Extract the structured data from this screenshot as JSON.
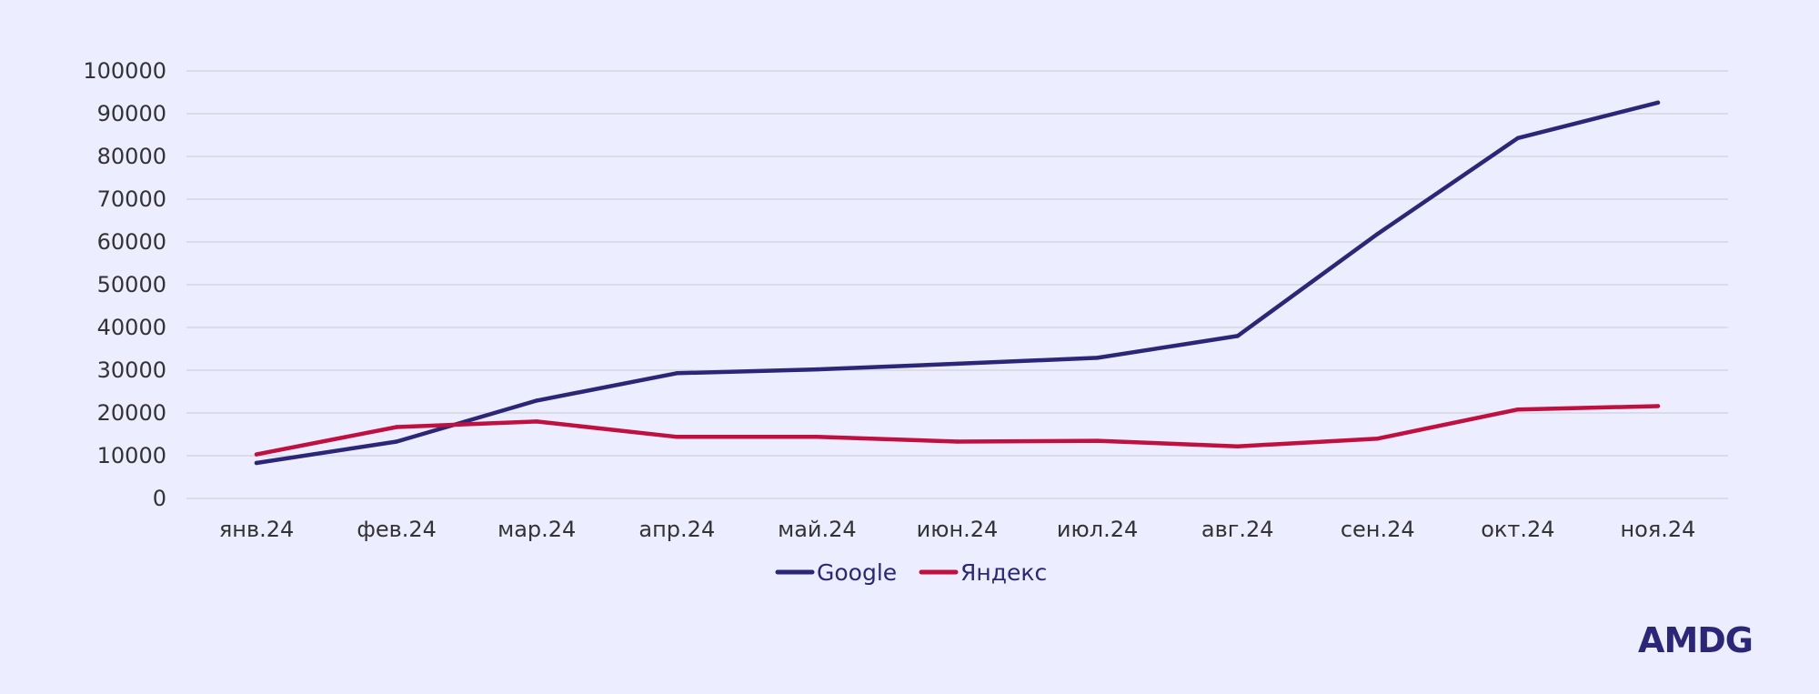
{
  "chart_data": {
    "type": "line",
    "categories": [
      "янв.24",
      "фев.24",
      "мар.24",
      "апр.24",
      "май.24",
      "июн.24",
      "июл.24",
      "авг.24",
      "сен.24",
      "окт.24",
      "ноя.24"
    ],
    "series": [
      {
        "name": "Google",
        "color": "#2B2677",
        "values": [
          8300,
          13300,
          22900,
          29300,
          30200,
          31500,
          32900,
          38000,
          61900,
          84300,
          92600
        ]
      },
      {
        "name": "Яндекс",
        "color": "#C0103F",
        "values": [
          10300,
          16700,
          18000,
          14400,
          14400,
          13300,
          13500,
          12200,
          14000,
          20800,
          21600
        ]
      }
    ],
    "ylim": [
      0,
      100000
    ],
    "yticks": [
      "0",
      "10000",
      "20000",
      "30000",
      "40000",
      "50000",
      "60000",
      "70000",
      "80000",
      "90000",
      "100000"
    ],
    "grid": true,
    "legend_position": "bottom-center"
  },
  "brand": {
    "logo_text": "AMDG",
    "color": "#2B2677"
  }
}
